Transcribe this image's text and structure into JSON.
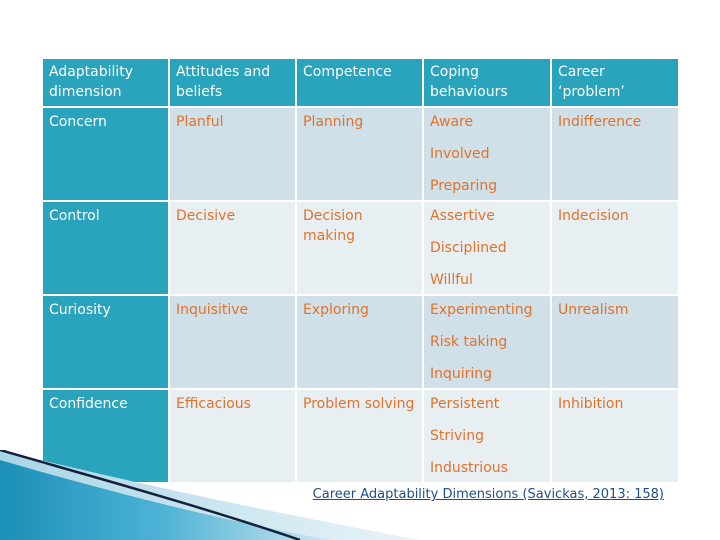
{
  "table": {
    "headers": [
      "Adaptability dimension",
      "Attitudes and beliefs",
      "Competence",
      "Coping behaviours",
      "Career ‘problem’"
    ],
    "rows": [
      {
        "dimension": "Concern",
        "attitudes": "Planful",
        "competence": "Planning",
        "coping": [
          "Aware",
          "Involved",
          "Preparing"
        ],
        "problem": "Indifference"
      },
      {
        "dimension": "Control",
        "attitudes": "Decisive",
        "competence": "Decision making",
        "coping": [
          "Assertive",
          "Disciplined",
          "Willful"
        ],
        "problem": "Indecision"
      },
      {
        "dimension": "Curiosity",
        "attitudes": "Inquisitive",
        "competence": "Exploring",
        "coping": [
          "Experimenting",
          "Risk taking",
          "Inquiring"
        ],
        "problem": "Unrealism"
      },
      {
        "dimension": "Confidence",
        "attitudes": "Efficacious",
        "competence": "Problem solving",
        "coping": [
          "Persistent",
          "Striving",
          "Industrious"
        ],
        "problem": "Inhibition"
      }
    ]
  },
  "caption": "Career Adaptability Dimensions (Savickas, 2013: 158)",
  "colors": {
    "header_bg": "#2aa3bd",
    "cell_text": "#e2722a",
    "row_light": "#e8eff3",
    "row_dark": "#d0e0e8",
    "caption": "#1f4e8c"
  }
}
